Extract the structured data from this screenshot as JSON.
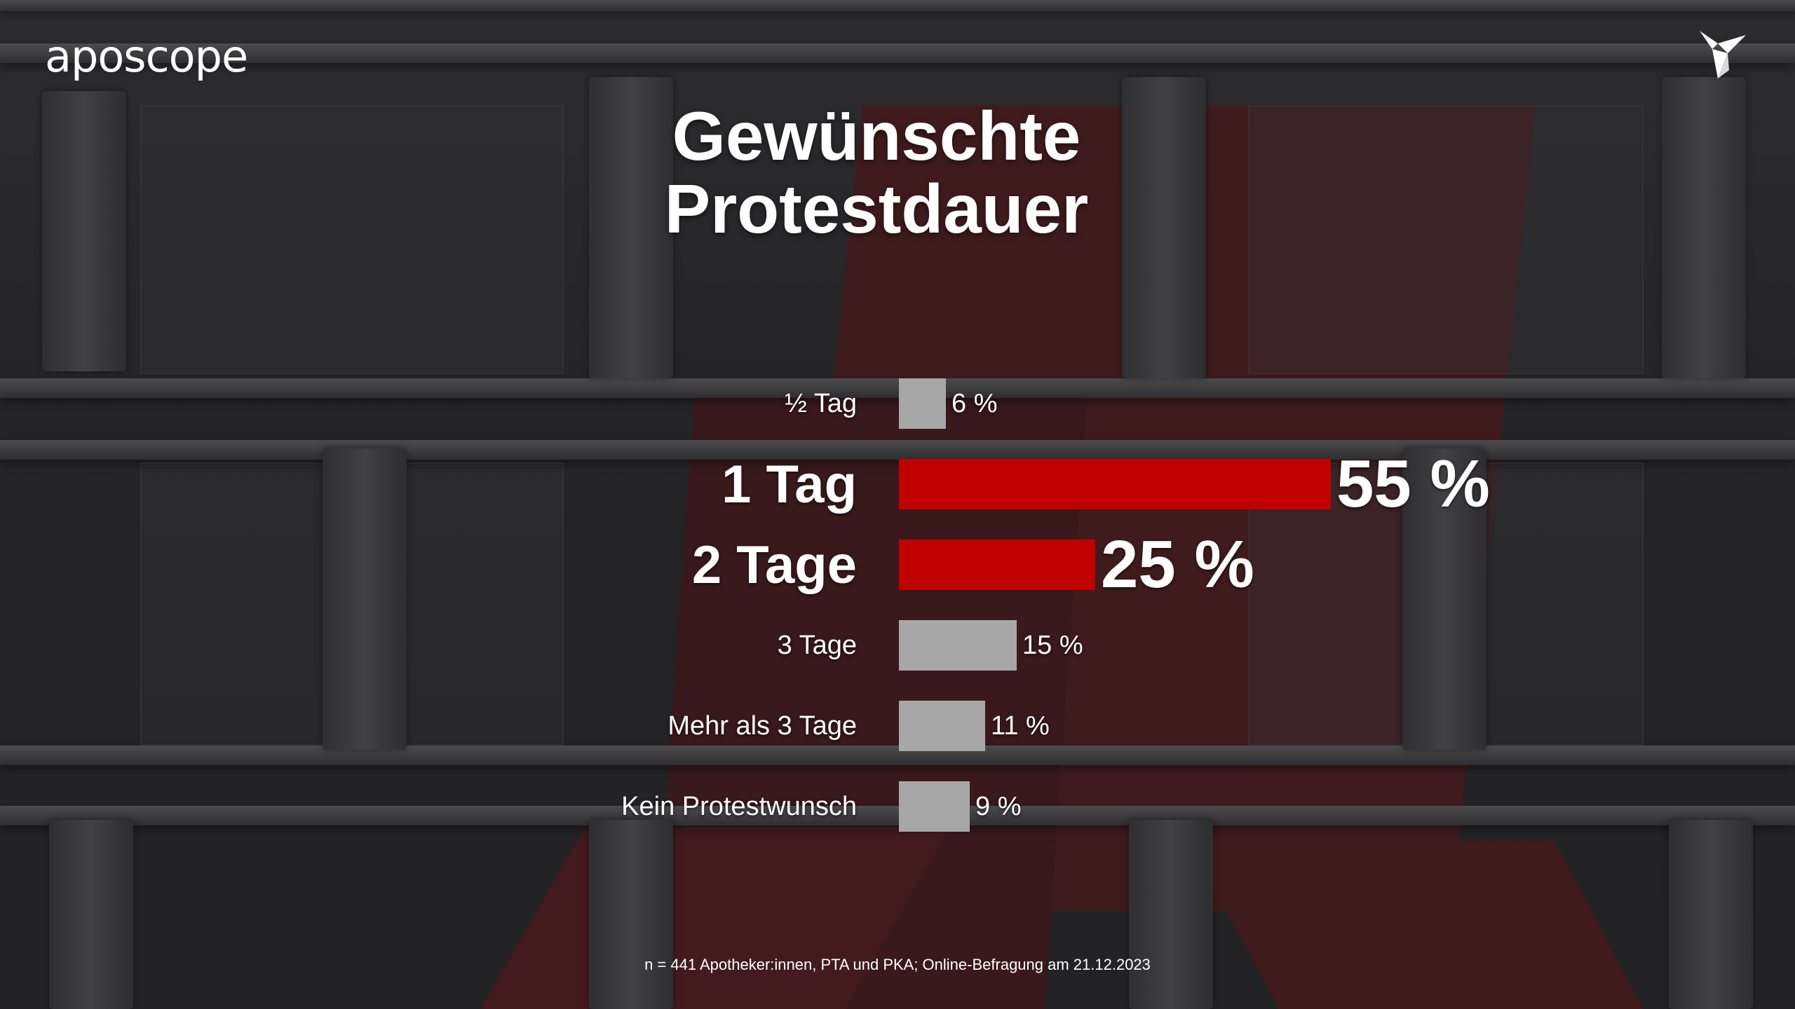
{
  "brand": {
    "name": "aposcope"
  },
  "icons": {
    "logo_mark": "origami-bird-icon"
  },
  "colors": {
    "highlight": "#c00000",
    "bar_default": "#a7a7a7",
    "text": "#ffffff"
  },
  "chart_data": {
    "type": "bar",
    "orientation": "horizontal",
    "title": "Gewünschte Protestdauer",
    "title_lines": [
      "Gewünschte",
      "Protestdauer"
    ],
    "unit": "%",
    "categories": [
      "½ Tag",
      "1 Tag",
      "2 Tage",
      "3 Tage",
      "Mehr als 3 Tage",
      "Kein Protestwunsch"
    ],
    "values": [
      6,
      55,
      25,
      15,
      11,
      9
    ],
    "value_labels": [
      "6 %",
      "55 %",
      "25 %",
      "15 %",
      "11 %",
      "9 %"
    ],
    "highlighted": [
      false,
      true,
      true,
      false,
      false,
      false
    ],
    "xlim": [
      0,
      55
    ],
    "grid": false,
    "legend": "none"
  },
  "footnote": "n = 441 Apotheker:innen, PTA und PKA; Online-Befragung am 21.12.2023"
}
